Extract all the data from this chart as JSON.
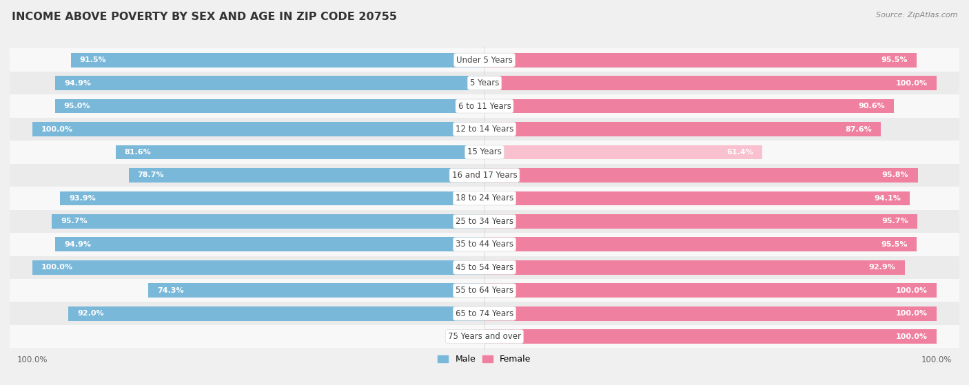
{
  "title": "INCOME ABOVE POVERTY BY SEX AND AGE IN ZIP CODE 20755",
  "source": "Source: ZipAtlas.com",
  "categories": [
    "Under 5 Years",
    "5 Years",
    "6 to 11 Years",
    "12 to 14 Years",
    "15 Years",
    "16 and 17 Years",
    "18 to 24 Years",
    "25 to 34 Years",
    "35 to 44 Years",
    "45 to 54 Years",
    "55 to 64 Years",
    "65 to 74 Years",
    "75 Years and over"
  ],
  "male_values": [
    91.5,
    94.9,
    95.0,
    100.0,
    81.6,
    78.7,
    93.9,
    95.7,
    94.9,
    100.0,
    74.3,
    92.0,
    0.0
  ],
  "female_values": [
    95.5,
    100.0,
    90.6,
    87.6,
    61.4,
    95.8,
    94.1,
    95.7,
    95.5,
    92.9,
    100.0,
    100.0,
    100.0
  ],
  "male_color": "#7ab8d9",
  "female_color": "#f080a0",
  "female_color_light": "#f9c0d0",
  "background_color": "#f0f0f0",
  "row_odd_color": "#f8f8f8",
  "row_even_color": "#ebebeb",
  "bar_height": 0.62,
  "title_fontsize": 11.5,
  "label_fontsize": 8.5,
  "value_fontsize": 8.0,
  "source_fontsize": 8.0
}
